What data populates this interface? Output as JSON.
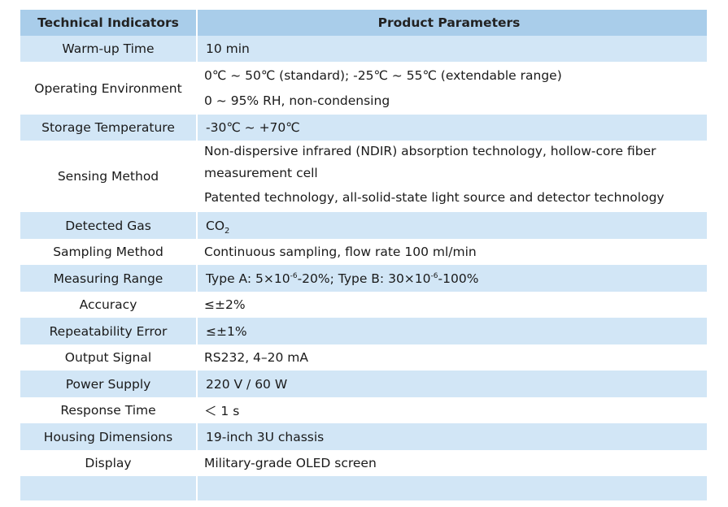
{
  "headers": {
    "left": "Technical Indicators",
    "right": "Product Parameters"
  },
  "rows": {
    "warmup": {
      "label": "Warm-up Time",
      "value": "10 min"
    },
    "operating": {
      "label": "Operating Environment",
      "line1": "0℃ ~ 50℃ (standard); -25℃ ~ 55℃ (extendable range)",
      "line2": "0 ~ 95% RH, non-condensing"
    },
    "storage": {
      "label": "Storage Temperature",
      "value": "-30℃ ~ +70℃"
    },
    "sensing": {
      "label": "Sensing Method",
      "line1": "Non-dispersive infrared (NDIR) absorption technology, hollow-core fiber",
      "line2": "measurement cell",
      "line3": "Patented technology, all-solid-state light source and detector technology"
    },
    "gas": {
      "label": "Detected Gas",
      "value_main": "CO",
      "value_sub": "2"
    },
    "sampling": {
      "label": "Sampling Method",
      "value": "Continuous sampling, flow rate 100 ml/min"
    },
    "range": {
      "label": "Measuring Range",
      "part1": "Type A: 5×10",
      "exp1": "-6",
      "part2": "-20%; Type B: 30×10",
      "exp2": "-6",
      "part3": "-100%"
    },
    "accuracy": {
      "label": "Accuracy",
      "value": "≤±2%"
    },
    "repeat": {
      "label": "Repeatability Error",
      "value": "≤±1%"
    },
    "output": {
      "label": "Output Signal",
      "value": "RS232, 4–20 mA"
    },
    "power": {
      "label": "Power Supply",
      "value": "220 V / 60 W"
    },
    "response": {
      "label": "Response Time",
      "value": "＜ 1 s"
    },
    "housing": {
      "label": "Housing Dimensions",
      "value": "19-inch 3U chassis"
    },
    "display": {
      "label": "Display",
      "value": "Military-grade OLED screen"
    }
  },
  "colors": {
    "header_bg": "#a9cdea",
    "band_bg": "#d2e6f6",
    "plain_bg": "#ffffff"
  }
}
